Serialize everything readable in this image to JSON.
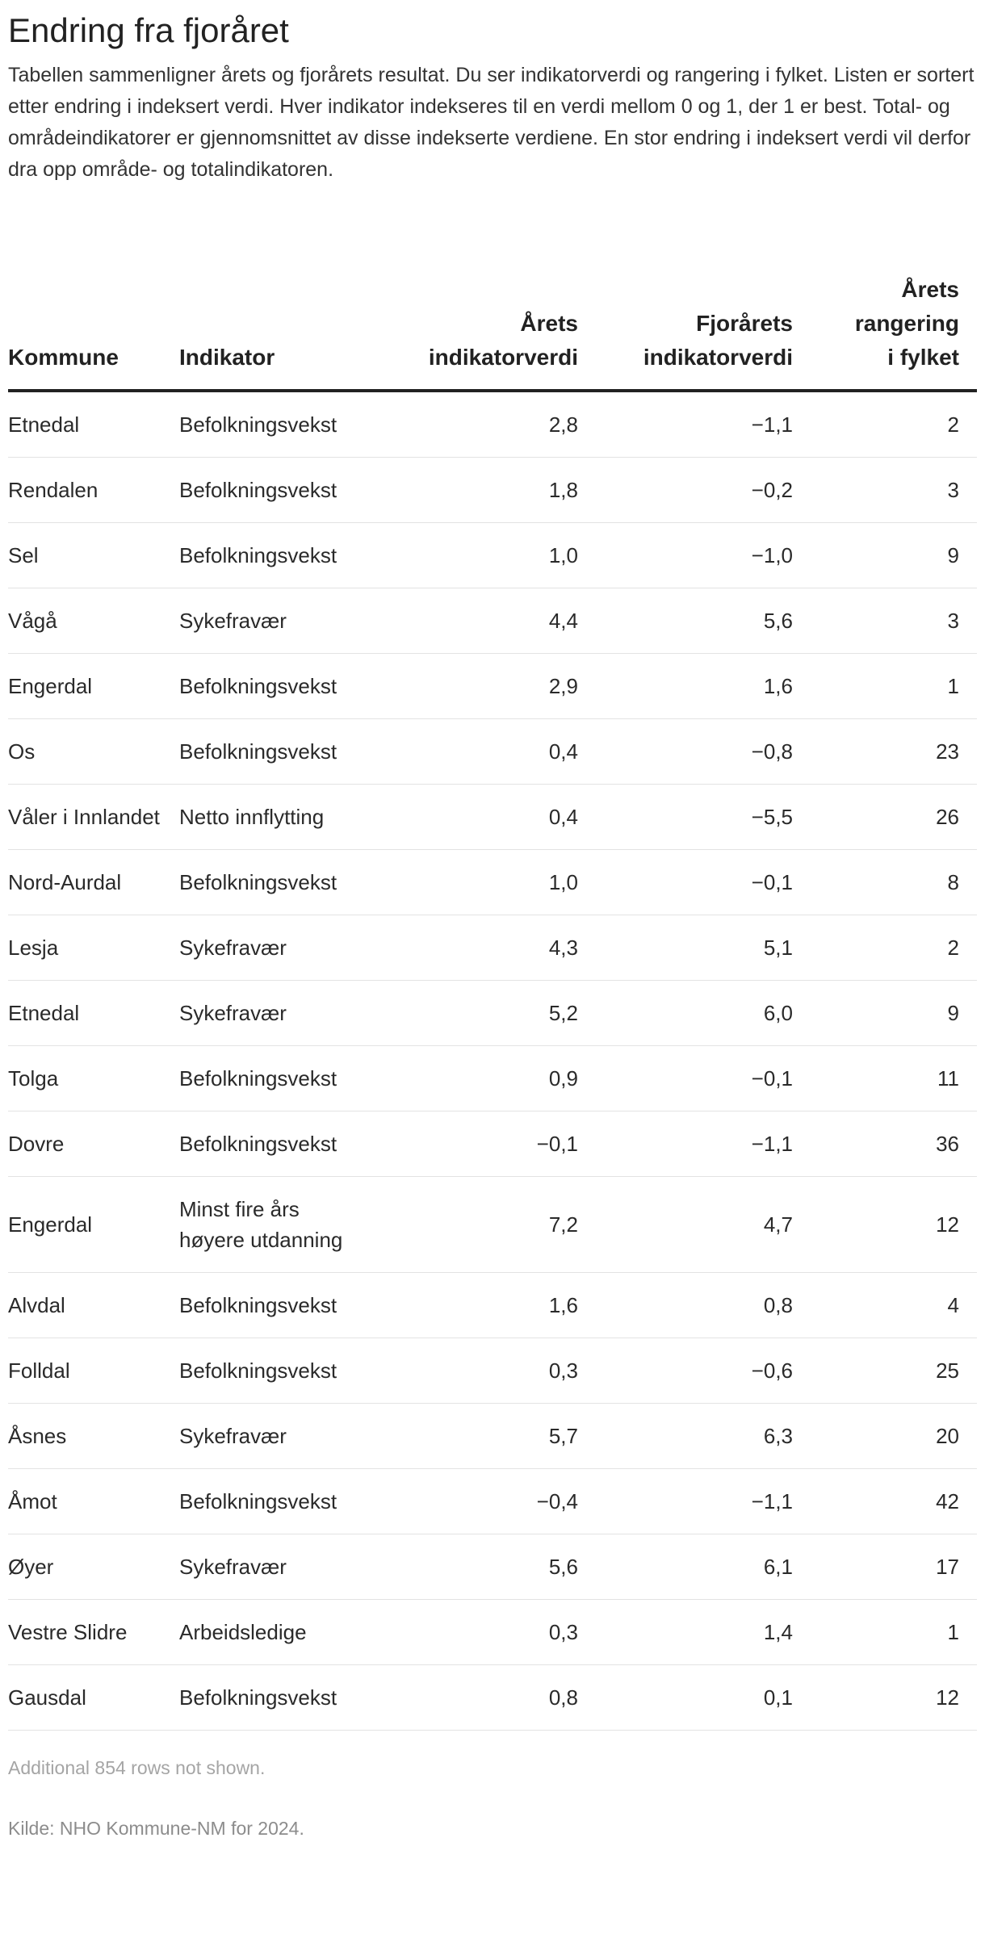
{
  "title": "Endring fra fjoråret",
  "description": "Tabellen sammenligner årets og fjorårets resultat. Du ser indikatorverdi og rangering i fylket. Listen er sortert etter endring i indeksert verdi. Hver indikator indekseres til en verdi mellom 0 og 1, der 1 er best. Total- og områdeindikatorer er gjennomsnittet av disse indekserte verdiene. En stor endring i indeksert verdi vil derfor dra opp område- og totalindikatoren.",
  "table": {
    "headers": {
      "kommune": "Kommune",
      "indikator": "Indikator",
      "arets_verdi_l1": "Årets",
      "arets_verdi_l2": "indikatorverdi",
      "fjor_verdi_l1": "Fjorårets",
      "fjor_verdi_l2": "indikatorverdi",
      "rang_l1": "Årets",
      "rang_l2": "rangering",
      "rang_l3": "i fylket"
    },
    "rows": [
      {
        "kommune": "Etnedal",
        "indikator": "Befolkningsvekst",
        "arets": "2,8",
        "fjor": "−1,1",
        "rang": "2"
      },
      {
        "kommune": "Rendalen",
        "indikator": "Befolkningsvekst",
        "arets": "1,8",
        "fjor": "−0,2",
        "rang": "3"
      },
      {
        "kommune": "Sel",
        "indikator": "Befolkningsvekst",
        "arets": "1,0",
        "fjor": "−1,0",
        "rang": "9"
      },
      {
        "kommune": "Vågå",
        "indikator": "Sykefravær",
        "arets": "4,4",
        "fjor": "5,6",
        "rang": "3"
      },
      {
        "kommune": "Engerdal",
        "indikator": "Befolkningsvekst",
        "arets": "2,9",
        "fjor": "1,6",
        "rang": "1"
      },
      {
        "kommune": "Os",
        "indikator": "Befolkningsvekst",
        "arets": "0,4",
        "fjor": "−0,8",
        "rang": "23"
      },
      {
        "kommune": "Våler i Innlandet",
        "indikator": "Netto innflytting",
        "arets": "0,4",
        "fjor": "−5,5",
        "rang": "26"
      },
      {
        "kommune": "Nord-Aurdal",
        "indikator": "Befolkningsvekst",
        "arets": "1,0",
        "fjor": "−0,1",
        "rang": "8"
      },
      {
        "kommune": "Lesja",
        "indikator": "Sykefravær",
        "arets": "4,3",
        "fjor": "5,1",
        "rang": "2"
      },
      {
        "kommune": "Etnedal",
        "indikator": "Sykefravær",
        "arets": "5,2",
        "fjor": "6,0",
        "rang": "9"
      },
      {
        "kommune": "Tolga",
        "indikator": "Befolkningsvekst",
        "arets": "0,9",
        "fjor": "−0,1",
        "rang": "11"
      },
      {
        "kommune": "Dovre",
        "indikator": "Befolkningsvekst",
        "arets": "−0,1",
        "fjor": "−1,1",
        "rang": "36"
      },
      {
        "kommune": "Engerdal",
        "indikator": "Minst fire års høyere utdanning",
        "arets": "7,2",
        "fjor": "4,7",
        "rang": "12"
      },
      {
        "kommune": "Alvdal",
        "indikator": "Befolkningsvekst",
        "arets": "1,6",
        "fjor": "0,8",
        "rang": "4"
      },
      {
        "kommune": "Folldal",
        "indikator": "Befolkningsvekst",
        "arets": "0,3",
        "fjor": "−0,6",
        "rang": "25"
      },
      {
        "kommune": "Åsnes",
        "indikator": "Sykefravær",
        "arets": "5,7",
        "fjor": "6,3",
        "rang": "20"
      },
      {
        "kommune": "Åmot",
        "indikator": "Befolkningsvekst",
        "arets": "−0,4",
        "fjor": "−1,1",
        "rang": "42"
      },
      {
        "kommune": "Øyer",
        "indikator": "Sykefravær",
        "arets": "5,6",
        "fjor": "6,1",
        "rang": "17"
      },
      {
        "kommune": "Vestre Slidre",
        "indikator": "Arbeidsledige",
        "arets": "0,3",
        "fjor": "1,4",
        "rang": "1"
      },
      {
        "kommune": "Gausdal",
        "indikator": "Befolkningsvekst",
        "arets": "0,8",
        "fjor": "0,1",
        "rang": "12"
      }
    ]
  },
  "footnote": "Additional 854 rows not shown.",
  "source": "Kilde: NHO Kommune-NM for 2024."
}
